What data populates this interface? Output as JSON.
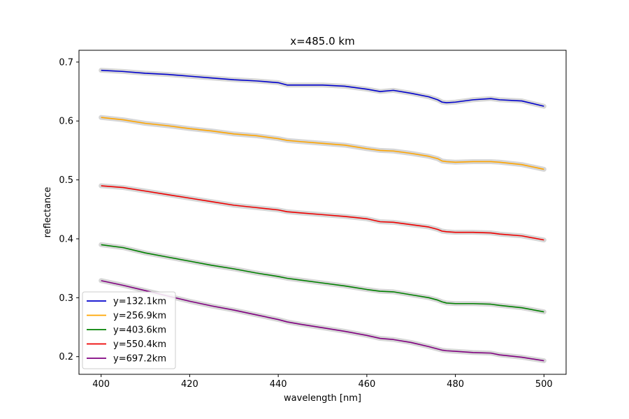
{
  "chart_data": {
    "type": "line",
    "title": "x=485.0 km",
    "xlabel": "wavelength [nm]",
    "ylabel": "reflectance",
    "xlim": [
      395,
      505
    ],
    "ylim": [
      0.17,
      0.72
    ],
    "xticks": [
      400,
      420,
      440,
      460,
      480,
      500
    ],
    "xtick_labels": [
      "400",
      "420",
      "440",
      "460",
      "480",
      "500"
    ],
    "yticks": [
      0.2,
      0.3,
      0.4,
      0.5,
      0.6,
      0.7
    ],
    "ytick_labels": [
      "0.2",
      "0.3",
      "0.4",
      "0.5",
      "0.6",
      "0.7"
    ],
    "grid": false,
    "legend_position": "lower-left",
    "band_color": "#bbbbbb",
    "x": [
      400,
      405,
      410,
      415,
      420,
      425,
      430,
      435,
      440,
      442,
      445,
      450,
      455,
      460,
      463,
      466,
      470,
      474,
      476,
      477,
      478,
      480,
      484,
      488,
      490,
      495,
      500
    ],
    "series": [
      {
        "name": "y=132.1km",
        "color": "#0000cc",
        "values": [
          0.686,
          0.684,
          0.681,
          0.679,
          0.676,
          0.673,
          0.67,
          0.668,
          0.665,
          0.661,
          0.661,
          0.661,
          0.659,
          0.654,
          0.65,
          0.652,
          0.647,
          0.641,
          0.636,
          0.632,
          0.631,
          0.632,
          0.636,
          0.638,
          0.636,
          0.634,
          0.625
        ]
      },
      {
        "name": "y=256.9km",
        "color": "#ffa500",
        "values": [
          0.606,
          0.602,
          0.596,
          0.592,
          0.587,
          0.583,
          0.578,
          0.575,
          0.57,
          0.567,
          0.565,
          0.562,
          0.559,
          0.553,
          0.55,
          0.549,
          0.545,
          0.54,
          0.536,
          0.532,
          0.531,
          0.53,
          0.531,
          0.531,
          0.53,
          0.526,
          0.518
        ]
      },
      {
        "name": "y=403.6km",
        "color": "#008000",
        "values": [
          0.39,
          0.385,
          0.376,
          0.369,
          0.362,
          0.355,
          0.349,
          0.342,
          0.336,
          0.333,
          0.33,
          0.325,
          0.32,
          0.314,
          0.311,
          0.31,
          0.305,
          0.3,
          0.296,
          0.293,
          0.291,
          0.29,
          0.29,
          0.289,
          0.287,
          0.283,
          0.276
        ]
      },
      {
        "name": "y=550.4km",
        "color": "#ee0000",
        "values": [
          0.49,
          0.487,
          0.481,
          0.475,
          0.469,
          0.463,
          0.457,
          0.453,
          0.449,
          0.446,
          0.444,
          0.441,
          0.438,
          0.434,
          0.429,
          0.428,
          0.424,
          0.42,
          0.416,
          0.413,
          0.412,
          0.411,
          0.411,
          0.41,
          0.408,
          0.405,
          0.398
        ]
      },
      {
        "name": "y=697.2km",
        "color": "#800080",
        "values": [
          0.329,
          0.321,
          0.312,
          0.303,
          0.294,
          0.286,
          0.279,
          0.271,
          0.263,
          0.259,
          0.255,
          0.249,
          0.243,
          0.236,
          0.231,
          0.229,
          0.224,
          0.217,
          0.213,
          0.211,
          0.21,
          0.209,
          0.207,
          0.206,
          0.203,
          0.199,
          0.193
        ]
      }
    ]
  }
}
